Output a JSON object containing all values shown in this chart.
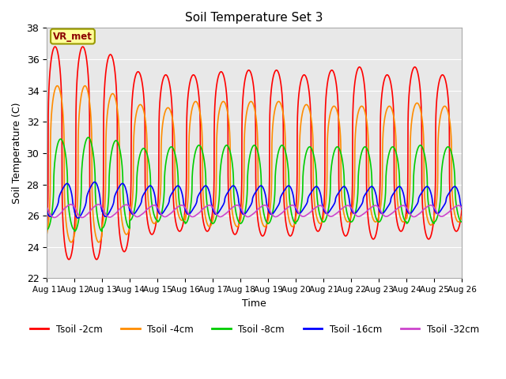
{
  "title": "Soil Temperature Set 3",
  "xlabel": "Time",
  "ylabel": "Soil Temperature (C)",
  "ylim": [
    22,
    38
  ],
  "yticks": [
    22,
    24,
    26,
    28,
    30,
    32,
    34,
    36,
    38
  ],
  "xlim_start": 0,
  "xlim_end": 15,
  "x_tick_labels": [
    "Aug 11",
    "Aug 12",
    "Aug 13",
    "Aug 14",
    "Aug 15",
    "Aug 16",
    "Aug 17",
    "Aug 18",
    "Aug 19",
    "Aug 20",
    "Aug 21",
    "Aug 22",
    "Aug 23",
    "Aug 24",
    "Aug 25",
    "Aug 26"
  ],
  "colors": {
    "Tsoil -2cm": "#ff0000",
    "Tsoil -4cm": "#ff8c00",
    "Tsoil -8cm": "#00cc00",
    "Tsoil -16cm": "#0000ff",
    "Tsoil -32cm": "#cc44cc"
  },
  "background_color": "#e8e8e8",
  "fig_background": "#ffffff",
  "annotation_text": "VR_met",
  "annotation_bg": "#ffff99",
  "annotation_border": "#999900",
  "params": {
    "t2cm": {
      "mean": 30.0,
      "amp": 6.5,
      "phase": 0.3,
      "sharpness": 3.5
    },
    "t4cm": {
      "mean": 29.3,
      "amp": 4.5,
      "phase": 0.38,
      "sharpness": 3.0
    },
    "t8cm": {
      "mean": 28.0,
      "amp": 2.8,
      "phase": 0.5,
      "sharpness": 2.0
    },
    "t16cm": {
      "mean": 27.0,
      "amp": 0.95,
      "phase": 0.68,
      "sharpness": 1.5
    },
    "t32cm": {
      "mean": 26.3,
      "amp": 0.35,
      "phase": 0.82,
      "sharpness": 1.2
    }
  },
  "amplitude_envelope": {
    "t2cm": [
      6.8,
      6.8,
      6.3,
      5.2,
      5.0,
      5.0,
      5.2,
      5.3,
      5.3,
      5.0,
      5.3,
      5.5,
      5.0,
      5.5,
      5.0
    ],
    "t4cm": [
      5.0,
      5.0,
      4.5,
      3.8,
      3.6,
      4.0,
      4.0,
      4.0,
      4.0,
      3.8,
      3.7,
      3.7,
      3.7,
      3.9,
      3.7
    ],
    "t8cm": [
      2.9,
      3.0,
      2.8,
      2.3,
      2.4,
      2.5,
      2.5,
      2.5,
      2.5,
      2.4,
      2.4,
      2.4,
      2.4,
      2.5,
      2.4
    ],
    "t16cm": [
      1.0,
      1.1,
      1.0,
      0.85,
      0.85,
      0.85,
      0.85,
      0.85,
      0.85,
      0.8,
      0.8,
      0.8,
      0.8,
      0.8,
      0.8
    ],
    "t32cm": [
      0.4,
      0.4,
      0.38,
      0.35,
      0.35,
      0.35,
      0.35,
      0.35,
      0.35,
      0.33,
      0.33,
      0.33,
      0.33,
      0.35,
      0.33
    ]
  }
}
